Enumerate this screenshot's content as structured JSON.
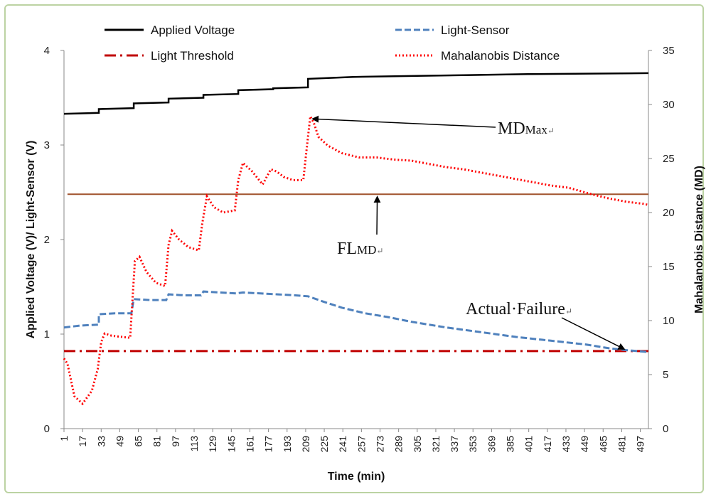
{
  "chart_data": {
    "type": "line",
    "xlabel": "Time (min)",
    "ylabel_left": "Applied Voltage (V)/ Light-Sensor (V)",
    "ylabel_right": "Mahalanobis  Distance (MD)",
    "x_range": [
      1,
      504
    ],
    "y_left_range": [
      0,
      4
    ],
    "y_right_range": [
      0,
      35
    ],
    "x_ticks": [
      1,
      17,
      33,
      49,
      65,
      81,
      97,
      113,
      129,
      145,
      161,
      177,
      193,
      209,
      225,
      241,
      257,
      273,
      289,
      305,
      321,
      337,
      353,
      369,
      385,
      401,
      417,
      433,
      449,
      465,
      481,
      497
    ],
    "y_left_ticks": [
      0,
      1,
      2,
      3,
      4
    ],
    "y_right_ticks": [
      0,
      5,
      10,
      15,
      20,
      25,
      30,
      35
    ],
    "legend": [
      {
        "label": "Applied Voltage",
        "color": "#000000",
        "style": "solid"
      },
      {
        "label": "Light-Sensor",
        "color": "#4f81bd",
        "style": "dashed"
      },
      {
        "label": "Light Threshold",
        "color": "#c00000",
        "style": "dashdot"
      },
      {
        "label": "Mahalanobis Distance",
        "color": "#ff0000",
        "style": "dotted"
      }
    ],
    "series": [
      {
        "name": "Applied Voltage",
        "axis": "left",
        "color": "#000000",
        "style": "solid",
        "x": [
          1,
          31,
          31,
          61,
          61,
          91,
          91,
          121,
          121,
          151,
          151,
          181,
          181,
          211,
          211,
          230,
          250,
          300,
          350,
          400,
          450,
          504
        ],
        "y": [
          3.33,
          3.34,
          3.38,
          3.39,
          3.44,
          3.45,
          3.49,
          3.5,
          3.53,
          3.54,
          3.58,
          3.59,
          3.6,
          3.61,
          3.7,
          3.71,
          3.72,
          3.73,
          3.74,
          3.75,
          3.755,
          3.76
        ]
      },
      {
        "name": "Light-Sensor",
        "axis": "left",
        "color": "#4f81bd",
        "style": "dashed",
        "x": [
          1,
          15,
          31,
          31,
          45,
          59,
          61,
          75,
          89,
          91,
          105,
          119,
          121,
          135,
          149,
          155,
          170,
          185,
          200,
          211,
          225,
          240,
          260,
          280,
          300,
          330,
          360,
          390,
          420,
          450,
          470,
          485,
          504
        ],
        "y": [
          1.07,
          1.09,
          1.1,
          1.21,
          1.22,
          1.22,
          1.37,
          1.36,
          1.36,
          1.42,
          1.41,
          1.41,
          1.45,
          1.44,
          1.43,
          1.44,
          1.43,
          1.42,
          1.41,
          1.4,
          1.34,
          1.28,
          1.22,
          1.18,
          1.13,
          1.07,
          1.02,
          0.97,
          0.93,
          0.89,
          0.85,
          0.83,
          0.81
        ]
      },
      {
        "name": "Light Threshold",
        "axis": "left",
        "color": "#c00000",
        "style": "dashdot",
        "x": [
          1,
          504
        ],
        "y": [
          0.82,
          0.82
        ]
      },
      {
        "name": "Mahalanobis Distance",
        "axis": "right",
        "color": "#ff0000",
        "style": "dotted",
        "x": [
          1,
          4,
          10,
          17,
          25,
          30,
          33,
          36,
          42,
          50,
          58,
          60,
          62,
          66,
          72,
          80,
          88,
          91,
          94,
          100,
          108,
          117,
          120,
          124,
          130,
          138,
          148,
          151,
          155,
          163,
          172,
          179,
          184,
          190,
          198,
          207,
          210,
          213,
          216,
          220,
          228,
          240,
          255,
          270,
          285,
          300,
          315,
          330,
          345,
          360,
          375,
          390,
          405,
          420,
          435,
          445,
          455,
          470,
          485,
          500,
          504
        ],
        "y": [
          6.5,
          6.0,
          3.0,
          2.3,
          3.5,
          5.5,
          8.0,
          8.8,
          8.6,
          8.5,
          8.4,
          12.0,
          15.5,
          15.9,
          14.5,
          13.5,
          13.2,
          17.0,
          18.3,
          17.5,
          16.8,
          16.5,
          19.0,
          21.5,
          20.5,
          20.0,
          20.2,
          23.0,
          24.6,
          23.8,
          22.6,
          24.0,
          23.8,
          23.3,
          23.0,
          23.0,
          26.0,
          28.9,
          28.3,
          27.0,
          26.2,
          25.5,
          25.1,
          25.1,
          24.9,
          24.8,
          24.5,
          24.2,
          24.0,
          23.7,
          23.4,
          23.1,
          22.8,
          22.5,
          22.3,
          22.0,
          21.7,
          21.3,
          21.0,
          20.8,
          20.7
        ]
      },
      {
        "name": "FL_MD",
        "axis": "left",
        "color": "#a0522d",
        "style": "solid",
        "x": [
          4,
          504
        ],
        "y": [
          2.48,
          2.48
        ]
      }
    ],
    "annotations": [
      {
        "id": "md-max",
        "text": "MD",
        "sub": "Max",
        "mark": "↵",
        "target_x": 214,
        "target_y_right": 28.8
      },
      {
        "id": "fl-md",
        "text": "FL",
        "sub": "MD",
        "mark": "↵",
        "target_x": 270,
        "target_y_left": 2.48
      },
      {
        "id": "actual-failure",
        "text": "Actual·Failure",
        "mark": "↵",
        "target_x": 483,
        "target_y_left": 0.82
      }
    ]
  }
}
